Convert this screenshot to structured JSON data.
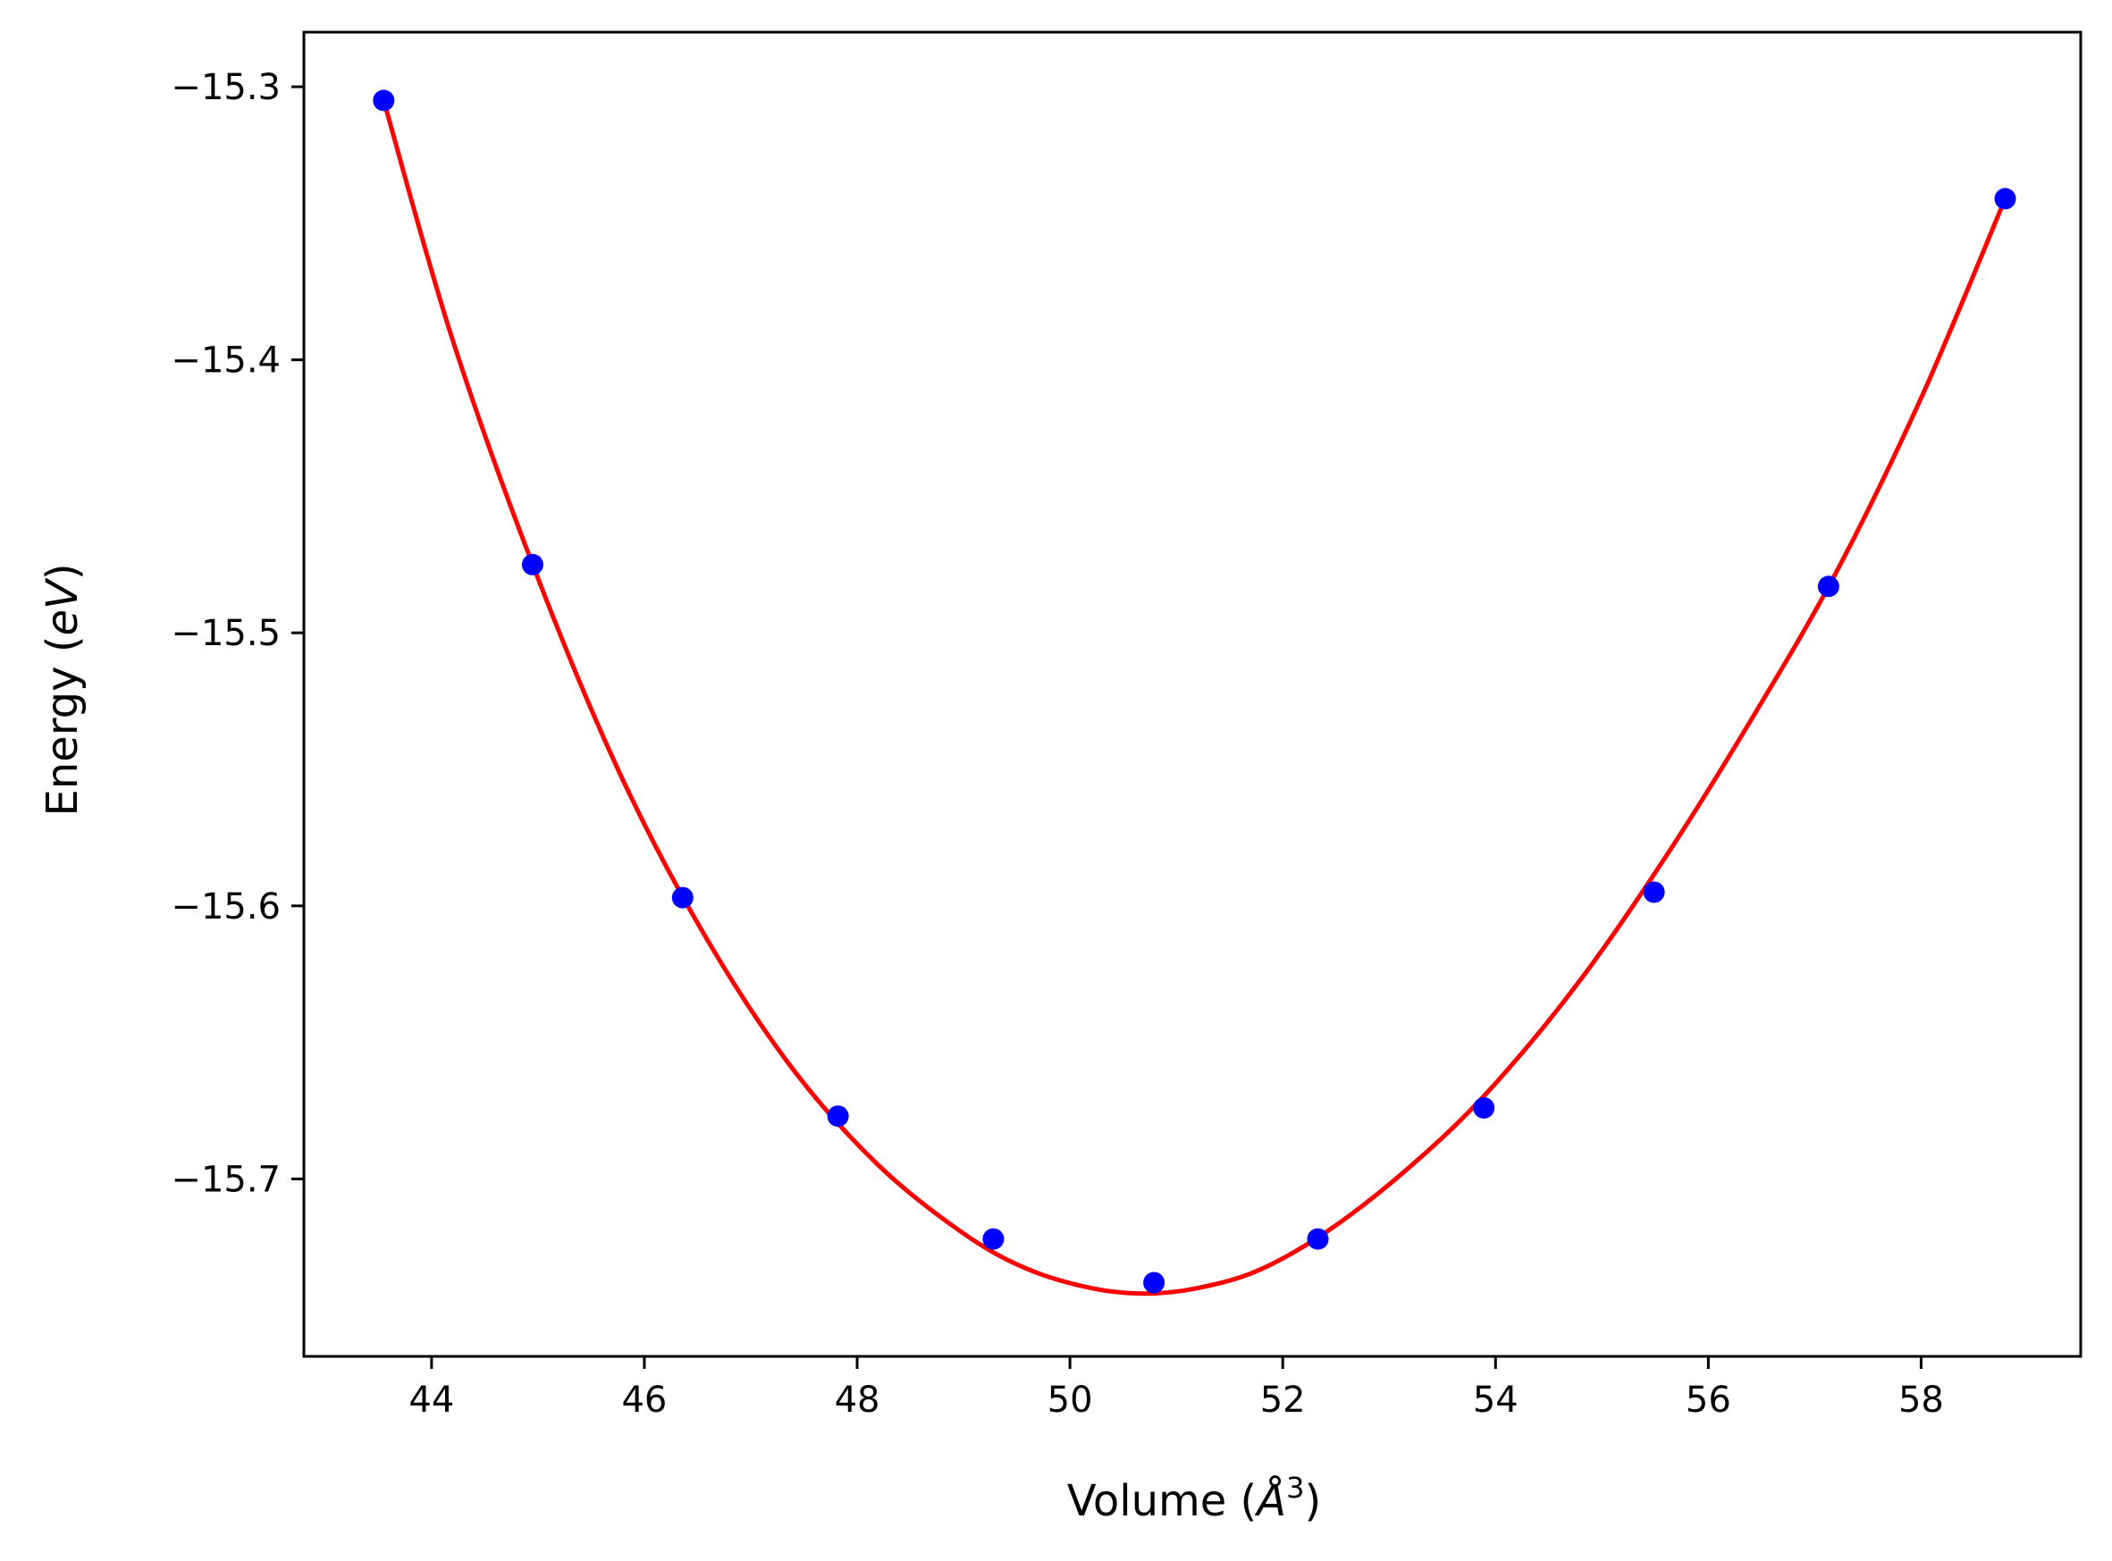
{
  "chart_data": {
    "type": "scatter",
    "title": "",
    "xlabel": {
      "prefix": "Volume (",
      "symbol": "Å",
      "exponent": "3",
      "suffix": ")"
    },
    "ylabel": {
      "prefix": "Energy (",
      "symbol": "eV",
      "suffix": ")"
    },
    "xlim": [
      42.8,
      59.5
    ],
    "ylim": [
      -15.765,
      -15.28
    ],
    "xticks": [
      44,
      46,
      48,
      50,
      52,
      54,
      56,
      58
    ],
    "xtick_labels": [
      "44",
      "46",
      "48",
      "50",
      "52",
      "54",
      "56",
      "58"
    ],
    "yticks": [
      -15.3,
      -15.4,
      -15.5,
      -15.6,
      -15.7
    ],
    "ytick_labels": [
      "−15.3",
      "−15.4",
      "−15.5",
      "−15.6",
      "−15.7"
    ],
    "grid": false,
    "colors": {
      "points": "#0000ff",
      "fit_curve": "#ff0000",
      "axes": "#000000",
      "background": "#ffffff"
    },
    "series": [
      {
        "type": "scatter",
        "x": [
          43.55,
          44.95,
          46.36,
          47.82,
          49.28,
          50.79,
          52.33,
          53.89,
          55.49,
          57.13,
          58.79
        ],
        "y": [
          -15.305,
          -15.475,
          -15.597,
          -15.677,
          -15.722,
          -15.738,
          -15.722,
          -15.674,
          -15.595,
          -15.483,
          -15.341
        ]
      },
      {
        "type": "line",
        "x": [
          43.55,
          44.2,
          45.0,
          45.8,
          46.6,
          47.4,
          48.2,
          49.0,
          49.6,
          50.2,
          50.7,
          51.2,
          51.8,
          52.5,
          53.3,
          54.0,
          54.8,
          55.6,
          56.4,
          57.2,
          58.0,
          58.79
        ],
        "y": [
          -15.305,
          -15.393,
          -15.48,
          -15.554,
          -15.613,
          -15.66,
          -15.695,
          -15.72,
          -15.733,
          -15.74,
          -15.742,
          -15.74,
          -15.733,
          -15.717,
          -15.692,
          -15.665,
          -15.627,
          -15.582,
          -15.532,
          -15.478,
          -15.414,
          -15.341
        ]
      }
    ]
  }
}
